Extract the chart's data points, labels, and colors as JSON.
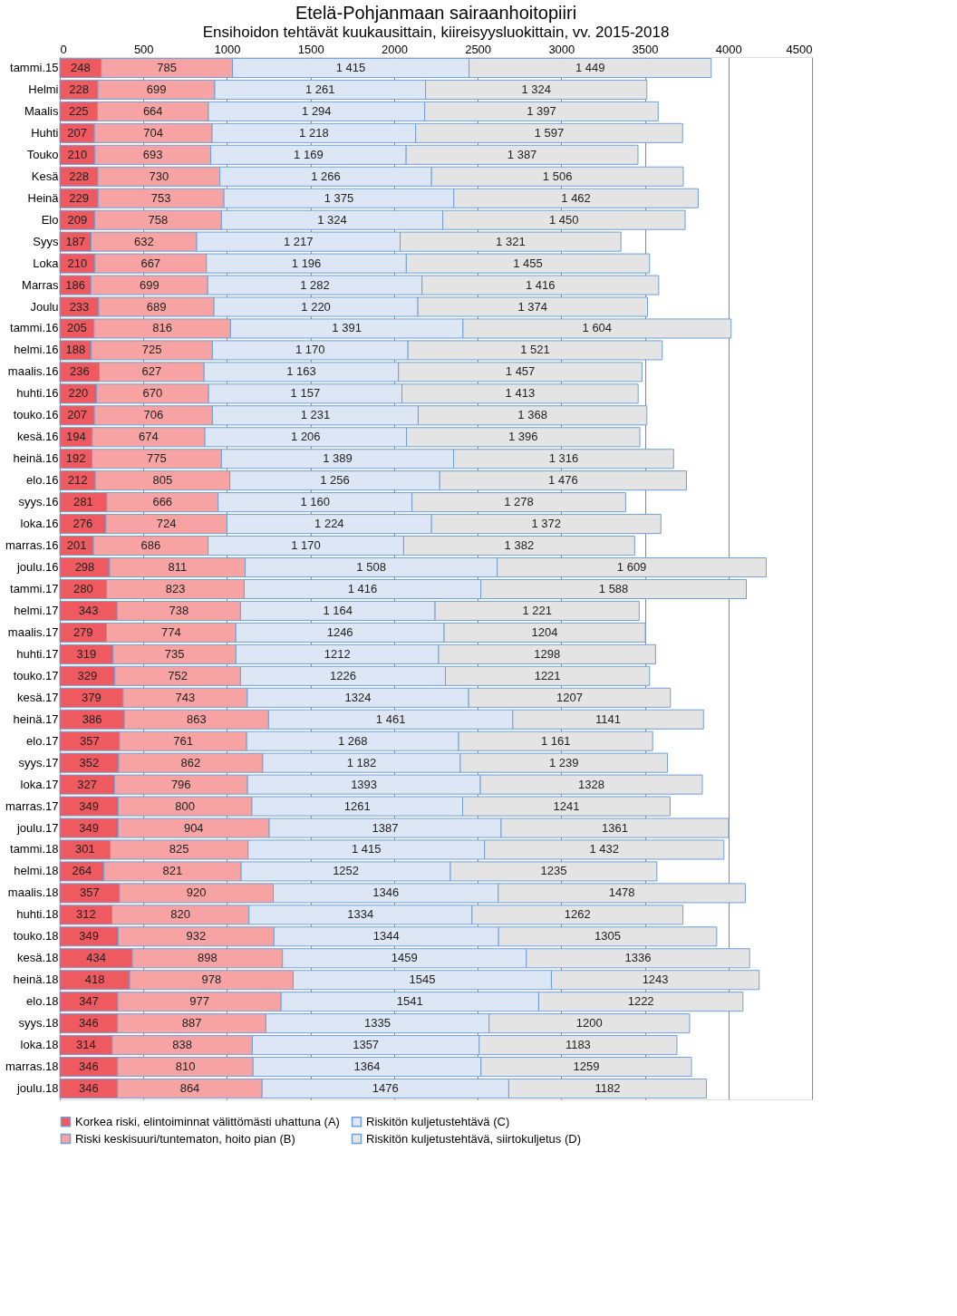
{
  "chart_data": {
    "type": "bar",
    "orientation": "horizontal",
    "stacked": true,
    "title": "Etelä-Pohjanmaan sairaanhoitopiiri",
    "subtitle": "Ensihoidon tehtävät kuukausittain, kiireisyysluokittain, vv. 2015-2018",
    "categories": [
      "tammi.15",
      "Helmi",
      "Maalis",
      "Huhti",
      "Touko",
      "Kesä",
      "Heinä",
      "Elo",
      "Syys",
      "Loka",
      "Marras",
      "Joulu",
      "tammi.16",
      "helmi.16",
      "maalis.16",
      "huhti.16",
      "touko.16",
      "kesä.16",
      "heinä.16",
      "elo.16",
      "syys.16",
      "loka.16",
      "marras.16",
      "joulu.16",
      "tammi.17",
      "helmi.17",
      "maalis.17",
      "huhti.17",
      "touko.17",
      "kesä.17",
      "heinä.17",
      "elo.17",
      "syys.17",
      "loka.17",
      "marras.17",
      "joulu.17",
      "tammi.18",
      "helmi.18",
      "maalis.18",
      "huhti.18",
      "touko.18",
      "kesä.18",
      "heinä.18",
      "elo.18",
      "syys.18",
      "loka.18",
      "marras.18",
      "joulu.18"
    ],
    "series": [
      {
        "name": "Korkea riski, elintoiminnat välittömästi uhattuna (A)",
        "color": "#ee5a5f",
        "values": [
          248,
          228,
          225,
          207,
          210,
          228,
          229,
          209,
          187,
          210,
          186,
          233,
          205,
          188,
          236,
          220,
          207,
          194,
          192,
          212,
          281,
          276,
          201,
          298,
          280,
          343,
          279,
          319,
          329,
          379,
          386,
          357,
          352,
          327,
          349,
          349,
          301,
          264,
          357,
          312,
          349,
          434,
          418,
          347,
          346,
          314,
          346,
          346
        ]
      },
      {
        "name": "Riski keskisuuri/tuntematon, hoito pian (B)",
        "color": "#f7a3a3",
        "values": [
          785,
          699,
          664,
          704,
          693,
          730,
          753,
          758,
          632,
          667,
          699,
          689,
          816,
          725,
          627,
          670,
          706,
          674,
          775,
          805,
          666,
          724,
          686,
          811,
          823,
          738,
          774,
          735,
          752,
          743,
          863,
          761,
          862,
          796,
          800,
          904,
          825,
          821,
          920,
          820,
          932,
          898,
          978,
          977,
          887,
          838,
          810,
          864
        ]
      },
      {
        "name": "Riskitön kuljetustehtävä (C)",
        "color": "#dce6f4",
        "values": [
          1415,
          1261,
          1294,
          1218,
          1169,
          1266,
          1375,
          1324,
          1217,
          1196,
          1282,
          1220,
          1391,
          1170,
          1163,
          1157,
          1231,
          1206,
          1389,
          1256,
          1160,
          1224,
          1170,
          1508,
          1416,
          1164,
          1246,
          1212,
          1226,
          1324,
          1461,
          1268,
          1182,
          1393,
          1261,
          1387,
          1415,
          1252,
          1346,
          1334,
          1344,
          1459,
          1545,
          1541,
          1335,
          1357,
          1364,
          1476
        ],
        "value_labels": [
          "1 415",
          "1 261",
          "1 294",
          "1 218",
          "1 169",
          "1 266",
          "1 375",
          "1 324",
          "1 217",
          "1 196",
          "1 282",
          "1 220",
          "1 391",
          "1 170",
          "1 163",
          "1 157",
          "1 231",
          "1 206",
          "1 389",
          "1 256",
          "1 160",
          "1 224",
          "1 170",
          "1 508",
          "1 416",
          "1 164",
          "1246",
          "1212",
          "1226",
          "1324",
          "1 461",
          "1 268",
          "1 182",
          "1393",
          "1261",
          "1387",
          "1 415",
          "1252",
          "1346",
          "1334",
          "1344",
          "1459",
          "1545",
          "1541",
          "1335",
          "1357",
          "1364",
          "1476"
        ]
      },
      {
        "name": "Riskitön kuljetustehtävä, siirtokuljetus (D)",
        "color": "#e4e4e4",
        "values": [
          1449,
          1324,
          1397,
          1597,
          1387,
          1506,
          1462,
          1450,
          1321,
          1455,
          1416,
          1374,
          1604,
          1521,
          1457,
          1413,
          1368,
          1396,
          1316,
          1476,
          1278,
          1372,
          1382,
          1609,
          1588,
          1221,
          1204,
          1298,
          1221,
          1207,
          1141,
          1161,
          1239,
          1328,
          1241,
          1361,
          1432,
          1235,
          1478,
          1262,
          1305,
          1336,
          1243,
          1222,
          1200,
          1183,
          1259,
          1182
        ],
        "value_labels": [
          "1 449",
          "1 324",
          "1 397",
          "1 597",
          "1 387",
          "1 506",
          "1 462",
          "1 450",
          "1 321",
          "1 455",
          "1 416",
          "1 374",
          "1 604",
          "1 521",
          "1 457",
          "1 413",
          "1 368",
          "1 396",
          "1 316",
          "1 476",
          "1 278",
          "1 372",
          "1 382",
          "1 609",
          "1 588",
          "1 221",
          "1204",
          "1298",
          "1221",
          "1207",
          "1141",
          "1 161",
          "1 239",
          "1328",
          "1241",
          "1361",
          "1 432",
          "1235",
          "1478",
          "1262",
          "1305",
          "1336",
          "1243",
          "1222",
          "1200",
          "1183",
          "1259",
          "1182"
        ]
      }
    ],
    "data_labels": true,
    "xlim": [
      0,
      4500
    ],
    "xticks": [
      0,
      500,
      1000,
      1500,
      2000,
      2500,
      3000,
      3500,
      4000,
      4500
    ],
    "grid": "x",
    "legend": "bottom"
  }
}
